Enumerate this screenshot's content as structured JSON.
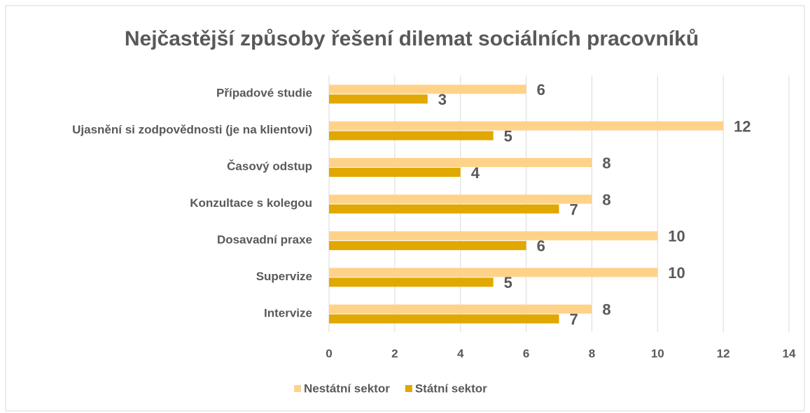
{
  "chart_data": {
    "type": "bar",
    "orientation": "horizontal",
    "title": "Nejčastější způsoby řešení dilemat sociálních pracovníků",
    "categories": [
      "Případové studie",
      "Ujasnění si zodpovědnosti (je na klientovi)",
      "Časový odstup",
      "Konzultace s kolegou",
      "Dosavadní praxe",
      "Supervize",
      "Intervize"
    ],
    "series": [
      {
        "name": "Nestátní sektor",
        "color": "#ffd28a",
        "values": [
          6,
          12,
          8,
          8,
          10,
          10,
          8
        ]
      },
      {
        "name": "Státní sektor",
        "color": "#e0a800",
        "values": [
          3,
          5,
          4,
          7,
          6,
          5,
          7
        ]
      }
    ],
    "xlim": [
      0,
      14
    ],
    "xticks": [
      0,
      2,
      4,
      6,
      8,
      10,
      12,
      14
    ],
    "grid": true,
    "legend": "bottom"
  }
}
